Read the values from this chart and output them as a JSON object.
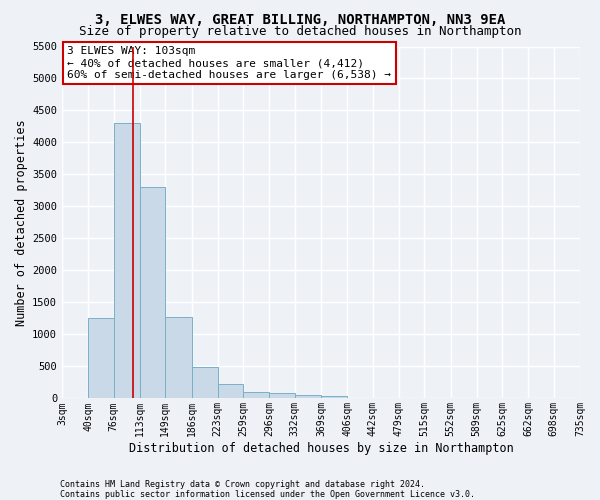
{
  "title1": "3, ELWES WAY, GREAT BILLING, NORTHAMPTON, NN3 9EA",
  "title2": "Size of property relative to detached houses in Northampton",
  "xlabel": "Distribution of detached houses by size in Northampton",
  "ylabel": "Number of detached properties",
  "bin_edges": [
    3,
    40,
    76,
    113,
    149,
    186,
    223,
    259,
    296,
    332,
    369,
    406,
    442,
    479,
    515,
    552,
    589,
    625,
    662,
    698,
    735
  ],
  "bar_heights": [
    0,
    1250,
    4300,
    3300,
    1280,
    490,
    230,
    100,
    80,
    50,
    30,
    10,
    5,
    3,
    2,
    1,
    1,
    0,
    0,
    0
  ],
  "bar_color": "#c9d9e8",
  "bar_edgecolor": "#7aafc8",
  "red_line_x": 103,
  "annotation_line1": "3 ELWES WAY: 103sqm",
  "annotation_line2": "← 40% of detached houses are smaller (4,412)",
  "annotation_line3": "60% of semi-detached houses are larger (6,538) →",
  "annotation_box_color": "white",
  "annotation_box_edgecolor": "#cc0000",
  "ylim": [
    0,
    5500
  ],
  "yticks": [
    0,
    500,
    1000,
    1500,
    2000,
    2500,
    3000,
    3500,
    4000,
    4500,
    5000,
    5500
  ],
  "footer1": "Contains HM Land Registry data © Crown copyright and database right 2024.",
  "footer2": "Contains public sector information licensed under the Open Government Licence v3.0.",
  "bg_color": "#eef2f7",
  "grid_color": "#ffffff",
  "title1_fontsize": 10,
  "title2_fontsize": 9,
  "tick_label_fontsize": 7,
  "axis_label_fontsize": 8.5,
  "annotation_fontsize": 8
}
